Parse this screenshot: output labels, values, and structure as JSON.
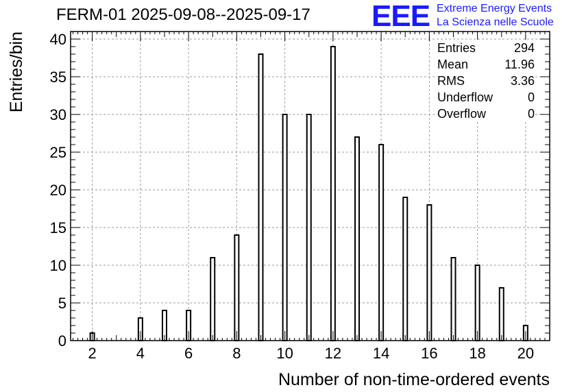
{
  "title": "FERM-01 2025-09-08--2025-09-17",
  "logo": {
    "mark": "EEE",
    "line1": "Extreme Energy Events",
    "line2": "La Scienza nelle Scuole",
    "color": "#1a1aff"
  },
  "stats": [
    {
      "label": "Entries",
      "value": "294"
    },
    {
      "label": "Mean",
      "value": "11.96"
    },
    {
      "label": "RMS",
      "value": "3.36"
    },
    {
      "label": "Underflow",
      "value": "0"
    },
    {
      "label": "Overflow",
      "value": "0"
    }
  ],
  "chart_data": {
    "type": "bar",
    "title": "FERM-01 2025-09-08--2025-09-17",
    "xlabel": "Number of non-time-ordered events",
    "ylabel": "Entries/bin",
    "x": [
      2,
      4,
      5,
      6,
      7,
      8,
      9,
      10,
      11,
      12,
      13,
      14,
      15,
      16,
      17,
      18,
      19,
      20
    ],
    "values": [
      1,
      3,
      4,
      4,
      11,
      14,
      38,
      30,
      30,
      39,
      27,
      26,
      19,
      18,
      11,
      10,
      7,
      2
    ],
    "xlim": [
      1.1,
      21
    ],
    "ylim": [
      0,
      41
    ],
    "xticks": [
      2,
      4,
      6,
      8,
      10,
      12,
      14,
      16,
      18,
      20
    ],
    "yticks": [
      0,
      5,
      10,
      15,
      20,
      25,
      30,
      35,
      40
    ],
    "grid": true,
    "bar_color": "#000000"
  }
}
